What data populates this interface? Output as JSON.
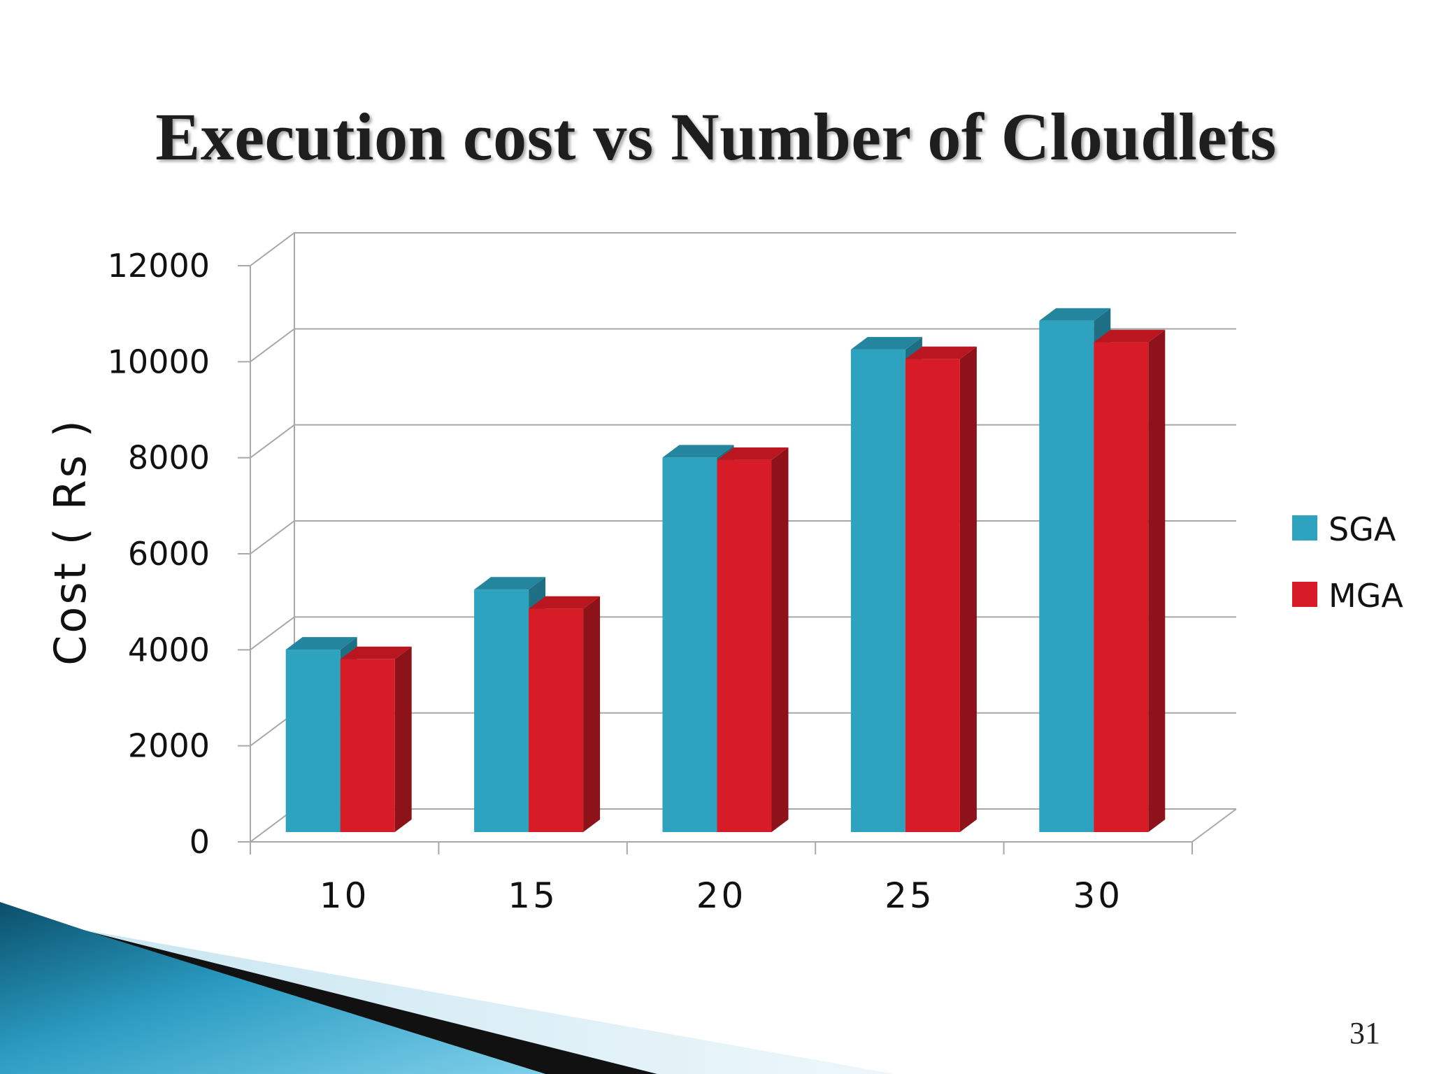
{
  "slide": {
    "title": "Execution cost vs Number of Cloudlets",
    "page_number": "31"
  },
  "colors": {
    "sga_front": "#2ea3c0",
    "sga_top": "#24859e",
    "sga_side": "#1f6f84",
    "mga_front": "#d81c27",
    "mga_top": "#b9161f",
    "mga_side": "#8e1219",
    "grid": "#a8a8a8"
  },
  "chart_data": {
    "type": "bar",
    "title": "Execution cost vs Number of Cloudlets",
    "xlabel": "",
    "ylabel": "Cost ( Rs )",
    "categories": [
      "10",
      "15",
      "20",
      "25",
      "30"
    ],
    "series": [
      {
        "name": "SGA",
        "values": [
          3800,
          5050,
          7800,
          10050,
          10650
        ]
      },
      {
        "name": "MGA",
        "values": [
          3600,
          4650,
          7750,
          9850,
          10200
        ]
      }
    ],
    "ylim": [
      0,
      12000
    ],
    "yticks": [
      "0",
      "2000",
      "4000",
      "6000",
      "8000",
      "10000",
      "12000"
    ],
    "grid": true,
    "legend": "right"
  }
}
